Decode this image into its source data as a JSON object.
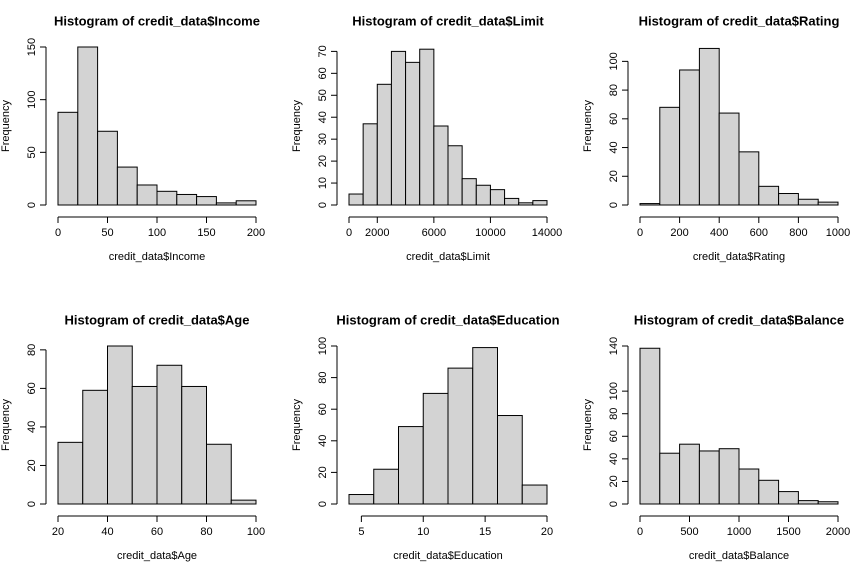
{
  "chart_data": [
    {
      "type": "histogram",
      "title": "Histogram of credit_data$Income",
      "xlabel": "credit_data$Income",
      "ylabel": "Frequency",
      "bins": [
        0,
        20,
        40,
        60,
        80,
        100,
        120,
        140,
        160,
        180,
        200
      ],
      "values": [
        88,
        150,
        70,
        36,
        19,
        13,
        10,
        8,
        2,
        4
      ],
      "xlim": [
        0,
        200
      ],
      "ylim": [
        0,
        150
      ],
      "xticks": [
        0,
        50,
        100,
        150,
        200
      ],
      "yticks": [
        0,
        50,
        100,
        150
      ],
      "color": "#d3d3d3"
    },
    {
      "type": "histogram",
      "title": "Histogram of credit_data$Limit",
      "xlabel": "credit_data$Limit",
      "ylabel": "Frequency",
      "bins": [
        0,
        1000,
        2000,
        3000,
        4000,
        5000,
        6000,
        7000,
        8000,
        9000,
        10000,
        11000,
        12000,
        13000,
        14000
      ],
      "values": [
        5,
        37,
        55,
        70,
        65,
        71,
        36,
        27,
        12,
        9,
        7,
        3,
        1,
        2
      ],
      "xlim": [
        0,
        14000
      ],
      "ylim": [
        0,
        72
      ],
      "xticks": [
        0,
        2000,
        6000,
        10000,
        14000
      ],
      "yticks": [
        0,
        10,
        20,
        30,
        40,
        50,
        60,
        70
      ],
      "color": "#d3d3d3"
    },
    {
      "type": "histogram",
      "title": "Histogram of credit_data$Rating",
      "xlabel": "credit_data$Rating",
      "ylabel": "Frequency",
      "bins": [
        0,
        100,
        200,
        300,
        400,
        500,
        600,
        700,
        800,
        900,
        1000
      ],
      "values": [
        1,
        68,
        94,
        109,
        64,
        37,
        13,
        8,
        4,
        2
      ],
      "xlim": [
        0,
        1000
      ],
      "ylim": [
        0,
        110
      ],
      "xticks": [
        0,
        200,
        400,
        600,
        800,
        1000
      ],
      "yticks": [
        0,
        20,
        40,
        60,
        80,
        100
      ],
      "color": "#d3d3d3"
    },
    {
      "type": "histogram",
      "title": "Histogram of credit_data$Age",
      "xlabel": "credit_data$Age",
      "ylabel": "Frequency",
      "bins": [
        20,
        30,
        40,
        50,
        60,
        70,
        80,
        90,
        100
      ],
      "values": [
        32,
        59,
        82,
        61,
        72,
        61,
        31,
        2
      ],
      "xlim": [
        20,
        100
      ],
      "ylim": [
        0,
        82
      ],
      "xticks": [
        20,
        40,
        60,
        80,
        100
      ],
      "yticks": [
        0,
        20,
        40,
        60,
        80
      ],
      "color": "#d3d3d3"
    },
    {
      "type": "histogram",
      "title": "Histogram of credit_data$Education",
      "xlabel": "credit_data$Education",
      "ylabel": "Frequency",
      "bins": [
        4,
        6,
        8,
        10,
        12,
        14,
        16,
        18,
        20
      ],
      "values": [
        6,
        22,
        49,
        70,
        86,
        99,
        56,
        12
      ],
      "xlim": [
        4,
        20
      ],
      "ylim": [
        0,
        100
      ],
      "xticks": [
        5,
        10,
        15,
        20
      ],
      "yticks": [
        0,
        20,
        40,
        60,
        80,
        100
      ],
      "color": "#d3d3d3"
    },
    {
      "type": "histogram",
      "title": "Histogram of credit_data$Balance",
      "xlabel": "credit_data$Balance",
      "ylabel": "Frequency",
      "bins": [
        0,
        200,
        400,
        600,
        800,
        1000,
        1200,
        1400,
        1600,
        1800,
        2000
      ],
      "values": [
        138,
        45,
        53,
        47,
        49,
        31,
        21,
        11,
        3,
        2
      ],
      "xlim": [
        0,
        2000
      ],
      "ylim": [
        0,
        140
      ],
      "xticks": [
        0,
        500,
        1000,
        1500,
        2000
      ],
      "yticks": [
        0,
        20,
        40,
        60,
        80,
        100,
        140
      ],
      "color": "#d3d3d3"
    }
  ]
}
